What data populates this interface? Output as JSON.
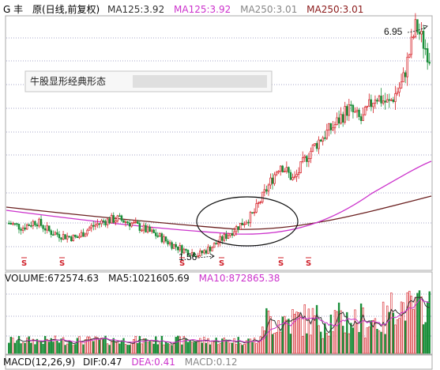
{
  "title_bar": {
    "stock_name": "G 丰",
    "chart_mode": "原(日线,前复权)",
    "ma1_label": "MA125:3.92",
    "ma2_label": "MA125:3.92",
    "ma3_label": "MA250:3.01",
    "ma4_label": "MA250:3.01",
    "colors": {
      "name": "#000000",
      "ma1": "#333333",
      "ma2": "#cc33cc",
      "ma3": "#888888",
      "ma4": "#8b1a1a"
    }
  },
  "callout": {
    "text": "牛股显形经典形态"
  },
  "volume_bar": {
    "volume_label": "VOLUME:672574.63",
    "ma5_label": "MA5:1021605.69",
    "ma10_label": "MA10:872865.38"
  },
  "macd_bar": {
    "macd_label": "MACD(12,26,9)",
    "dif_label": "DIF:0.47",
    "dea_label": "DEA:0.41",
    "macd_value_label": "MACD:0.12"
  },
  "chart_data": {
    "type": "candlestick",
    "annotations": [
      {
        "label": "6.95",
        "kind": "high"
      },
      {
        "label": "1.56",
        "kind": "low"
      }
    ],
    "price_range": [
      1.3,
      7.1
    ],
    "low_point": 1.56,
    "high_point": 6.95,
    "signal_marker": "S",
    "signal_count": 6,
    "price_path": [
      2.3,
      2.2,
      2.35,
      2.1,
      2.0,
      1.95,
      2.2,
      2.35,
      2.4,
      2.3,
      2.15,
      2.0,
      1.8,
      1.65,
      1.56,
      1.75,
      2.0,
      2.25,
      2.5,
      3.1,
      3.7,
      3.3,
      3.9,
      4.3,
      4.6,
      5.0,
      4.7,
      5.3,
      5.1,
      5.6,
      6.95,
      6.2
    ],
    "ma_long_path": [
      2.3,
      2.15,
      2.05,
      2.0,
      2.05,
      2.15,
      2.3,
      2.5,
      2.7,
      2.85,
      3.0
    ],
    "ma_short_path": [
      2.3,
      2.1,
      2.0,
      1.9,
      1.92,
      2.05,
      2.2,
      2.6,
      3.2,
      3.9,
      4.6
    ],
    "volume_range": [
      0,
      2200000
    ],
    "macd_range": [
      -0.3,
      0.9
    ]
  }
}
